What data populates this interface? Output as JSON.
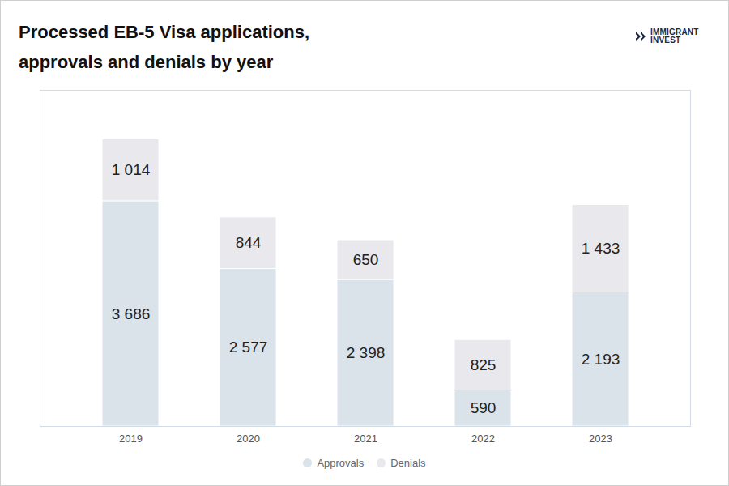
{
  "chart_data": {
    "type": "bar",
    "title": "Processed EB-5 Visa applications, approvals and denials by year",
    "logo_text": "IMMIGRANT INVEST",
    "categories": [
      "2019",
      "2020",
      "2021",
      "2022",
      "2023"
    ],
    "series": [
      {
        "name": "Approvals",
        "color": "#dae2ea",
        "values": [
          3686,
          2577,
          2398,
          590,
          2193
        ],
        "value_labels": [
          "3 686",
          "2 577",
          "2 398",
          "590",
          "2 193"
        ]
      },
      {
        "name": "Denials",
        "color": "#e8e8ed",
        "values": [
          1014,
          844,
          650,
          825,
          1433
        ],
        "value_labels": [
          "1 014",
          "844",
          "650",
          "825",
          "1 433"
        ]
      }
    ],
    "stacked": true,
    "data_labels": true,
    "legend": "bottom",
    "grid": false,
    "tick_labels": "x",
    "ylim": [
      0,
      5500
    ],
    "yticks": []
  }
}
